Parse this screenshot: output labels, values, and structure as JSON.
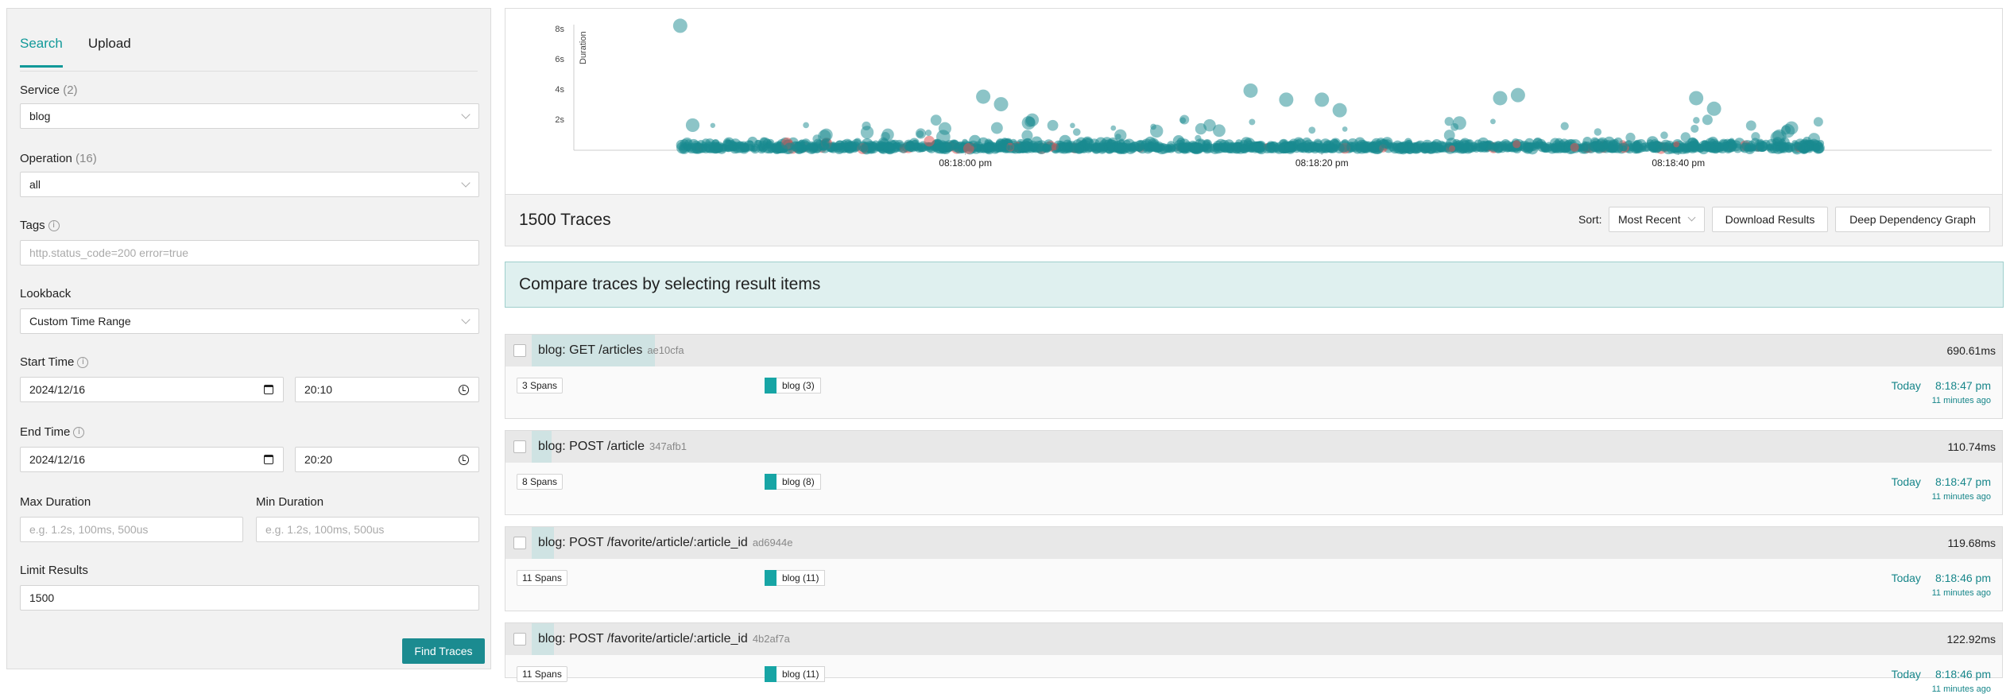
{
  "tabs": [
    {
      "label": "Search"
    },
    {
      "label": "Upload"
    }
  ],
  "service": {
    "label": "Service",
    "count": "(2)",
    "value": "blog"
  },
  "operation": {
    "label": "Operation",
    "count": "(16)",
    "value": "all"
  },
  "tags": {
    "label": "Tags",
    "placeholder": "http.status_code=200 error=true"
  },
  "lookback": {
    "label": "Lookback",
    "value": "Custom Time Range"
  },
  "start_time": {
    "label": "Start Time",
    "date": "2024/12/16",
    "time": "20:10"
  },
  "end_time": {
    "label": "End Time",
    "date": "2024/12/16",
    "time": "20:20"
  },
  "max_duration": {
    "label": "Max Duration",
    "placeholder": "e.g. 1.2s, 100ms, 500us"
  },
  "min_duration": {
    "label": "Min Duration",
    "placeholder": "e.g. 1.2s, 100ms, 500us"
  },
  "limit_results": {
    "label": "Limit Results",
    "value": "1500"
  },
  "find_traces_label": "Find Traces",
  "chart_data": {
    "type": "scatter",
    "ylabel": "Duration",
    "y_ticks": [
      "2s",
      "4s",
      "6s",
      "8s"
    ],
    "x_ticks": [
      "08:18:00 pm",
      "08:18:20 pm",
      "08:18:40 pm"
    ],
    "ylim_seconds": [
      0,
      8.8
    ],
    "colors": {
      "normal": "#1a8a90",
      "error": "#e05555"
    },
    "notable_points": [
      {
        "t": "08:17:44 pm",
        "duration_s": 8.2
      },
      {
        "t": "08:18:01 pm",
        "duration_s": 3.5
      },
      {
        "t": "08:18:02 pm",
        "duration_s": 3.0
      },
      {
        "t": "08:18:16 pm",
        "duration_s": 3.9
      },
      {
        "t": "08:18:18 pm",
        "duration_s": 3.3
      },
      {
        "t": "08:18:20 pm",
        "duration_s": 3.3
      },
      {
        "t": "08:18:21 pm",
        "duration_s": 2.6
      },
      {
        "t": "08:18:30 pm",
        "duration_s": 3.4
      },
      {
        "t": "08:18:31 pm",
        "duration_s": 3.6
      },
      {
        "t": "08:18:41 pm",
        "duration_s": 3.4
      },
      {
        "t": "08:18:42 pm",
        "duration_s": 2.7
      }
    ]
  },
  "results": {
    "count_label": "1500 Traces",
    "sort_label": "Sort:",
    "sort_value": "Most Recent",
    "download_label": "Download Results",
    "ddg_label": "Deep Dependency Graph"
  },
  "compare_text": "Compare traces by selecting result items",
  "traces": [
    {
      "name": "blog: GET /articles",
      "id": "ae10cfa",
      "duration": "690.61ms",
      "spans": "3 Spans",
      "service": "blog (3)",
      "day": "Today",
      "time": "8:18:47 pm",
      "ago": "11 minutes ago"
    },
    {
      "name": "blog: POST /article",
      "id": "347afb1",
      "duration": "110.74ms",
      "spans": "8 Spans",
      "service": "blog (8)",
      "day": "Today",
      "time": "8:18:47 pm",
      "ago": "11 minutes ago"
    },
    {
      "name": "blog: POST /favorite/article/:article_id",
      "id": "ad6944e",
      "duration": "119.68ms",
      "spans": "11 Spans",
      "service": "blog (11)",
      "day": "Today",
      "time": "8:18:46 pm",
      "ago": "11 minutes ago"
    },
    {
      "name": "blog: POST /favorite/article/:article_id",
      "id": "4b2af7a",
      "duration": "122.92ms",
      "spans": "11 Spans",
      "service": "blog (11)",
      "day": "Today",
      "time": "8:18:46 pm",
      "ago": "11 minutes ago"
    }
  ]
}
